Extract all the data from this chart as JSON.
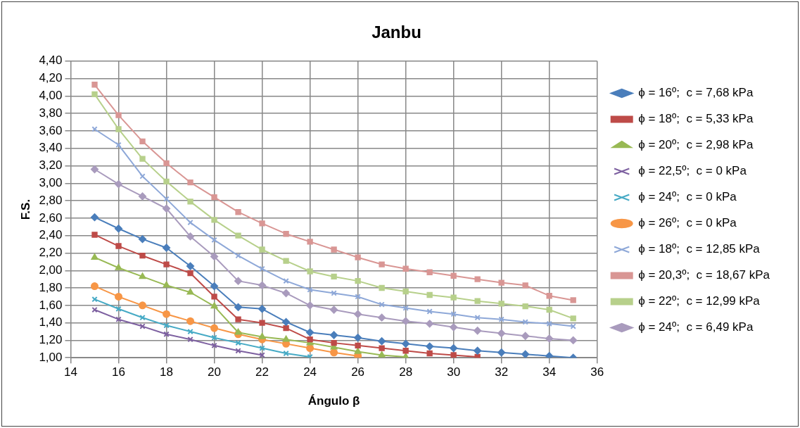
{
  "chart_data": {
    "type": "line",
    "title": "Janbu",
    "xlabel": "Ángulo β",
    "ylabel": "F.S.",
    "x": [
      15,
      16,
      17,
      18,
      19,
      20,
      21,
      22,
      23,
      24,
      25,
      26,
      27,
      28,
      29,
      30,
      31,
      32,
      33,
      34,
      35
    ],
    "xlim": [
      14,
      36
    ],
    "xticks": [
      14,
      16,
      18,
      20,
      22,
      24,
      26,
      28,
      30,
      32,
      34,
      36
    ],
    "ylim": [
      1,
      4.4
    ],
    "yticks": [
      {
        "value": 1,
        "label": "1,00"
      },
      {
        "value": 1.2,
        "label": "1,20"
      },
      {
        "value": 1.4,
        "label": "1,40"
      },
      {
        "value": 1.6,
        "label": "1,60"
      },
      {
        "value": 1.8,
        "label": "1,80"
      },
      {
        "value": 2,
        "label": "2,00"
      },
      {
        "value": 2.2,
        "label": "2,20"
      },
      {
        "value": 2.4,
        "label": "2,40"
      },
      {
        "value": 2.6,
        "label": "2,60"
      },
      {
        "value": 2.8,
        "label": "2,80"
      },
      {
        "value": 3,
        "label": "3,00"
      },
      {
        "value": 3.2,
        "label": "3,20"
      },
      {
        "value": 3.4,
        "label": "3,40"
      },
      {
        "value": 3.6,
        "label": "3,60"
      },
      {
        "value": 3.8,
        "label": "3,80"
      },
      {
        "value": 4,
        "label": "4,00"
      },
      {
        "value": 4.2,
        "label": "4,20"
      },
      {
        "value": 4.4,
        "label": "4,40"
      }
    ],
    "grid": true,
    "legend": "right",
    "line_style": "solid",
    "series": [
      {
        "name": "ϕ = 16º;  c = 7,68 kPa",
        "color": "#4a7ebb",
        "marker": "diamond",
        "values": [
          2.61,
          2.48,
          2.36,
          2.26,
          2.05,
          1.82,
          1.58,
          1.56,
          1.41,
          1.29,
          1.26,
          1.23,
          1.19,
          1.16,
          1.13,
          1.11,
          1.08,
          1.06,
          1.04,
          1.02,
          1.0
        ]
      },
      {
        "name": "ϕ = 18º;  c = 5,33 kPa",
        "color": "#be4b48",
        "marker": "square",
        "values": [
          2.41,
          2.28,
          2.17,
          2.07,
          1.97,
          1.7,
          1.44,
          1.4,
          1.34,
          1.21,
          1.17,
          1.14,
          1.11,
          1.08,
          1.05,
          1.03,
          1.01,
          null,
          null,
          null,
          null
        ]
      },
      {
        "name": "ϕ = 20º;  c = 2,98 kPa",
        "color": "#98b954",
        "marker": "triangle",
        "values": [
          2.15,
          2.03,
          1.93,
          1.83,
          1.75,
          1.59,
          1.29,
          1.24,
          1.21,
          1.17,
          1.12,
          1.07,
          1.03,
          1.01,
          null,
          null,
          null,
          null,
          null,
          null,
          null
        ]
      },
      {
        "name": "ϕ = 22,5º;  c = 0 kPa",
        "color": "#7d60a0",
        "marker": "cross",
        "values": [
          1.55,
          1.44,
          1.36,
          1.27,
          1.21,
          1.14,
          1.08,
          1.03,
          null,
          null,
          null,
          null,
          null,
          null,
          null,
          null,
          null,
          null,
          null,
          null,
          null
        ]
      },
      {
        "name": "ϕ = 24º;  c = 0 kPa",
        "color": "#46aac5",
        "marker": "cross",
        "values": [
          1.67,
          1.56,
          1.46,
          1.37,
          1.3,
          1.23,
          1.17,
          1.11,
          1.05,
          1.01,
          null,
          null,
          null,
          null,
          null,
          null,
          null,
          null,
          null,
          null,
          null
        ]
      },
      {
        "name": "ϕ = 26º;  c = 0 kPa",
        "color": "#f79646",
        "marker": "circle",
        "values": [
          1.82,
          1.7,
          1.6,
          1.5,
          1.42,
          1.34,
          1.27,
          1.21,
          1.16,
          1.11,
          1.06,
          1.02,
          null,
          null,
          null,
          null,
          null,
          null,
          null,
          null,
          null
        ]
      },
      {
        "name": "ϕ = 18º;  c = 12,85 kPa",
        "color": "#8ea8d8",
        "marker": "cross",
        "values": [
          3.62,
          3.44,
          3.08,
          2.82,
          2.55,
          2.35,
          2.17,
          2.02,
          1.88,
          1.78,
          1.74,
          1.7,
          1.61,
          1.57,
          1.53,
          1.5,
          1.46,
          1.44,
          1.41,
          1.39,
          1.36
        ]
      },
      {
        "name": "ϕ = 20,3º;  c = 18,67 kPa",
        "color": "#d99694",
        "marker": "square",
        "values": [
          4.13,
          3.78,
          3.48,
          3.23,
          3.01,
          2.84,
          2.67,
          2.54,
          2.42,
          2.33,
          2.24,
          2.15,
          2.07,
          2.02,
          1.98,
          1.94,
          1.9,
          1.86,
          1.83,
          1.71,
          1.66
        ]
      },
      {
        "name": "ϕ = 22º;  c = 12,99 kPa",
        "color": "#b7d08b",
        "marker": "square",
        "values": [
          4.02,
          3.62,
          3.28,
          3.02,
          2.79,
          2.58,
          2.4,
          2.24,
          2.11,
          1.99,
          1.93,
          1.88,
          1.8,
          1.76,
          1.72,
          1.69,
          1.65,
          1.62,
          1.59,
          1.55,
          1.45
        ]
      },
      {
        "name": "ϕ = 24º;  c = 6,49 kPa",
        "color": "#a99bbd",
        "marker": "diamond",
        "values": [
          3.16,
          2.99,
          2.85,
          2.71,
          2.39,
          2.16,
          1.88,
          1.83,
          1.74,
          1.6,
          1.55,
          1.5,
          1.46,
          1.42,
          1.39,
          1.35,
          1.31,
          1.28,
          1.25,
          1.22,
          1.2
        ]
      }
    ]
  }
}
